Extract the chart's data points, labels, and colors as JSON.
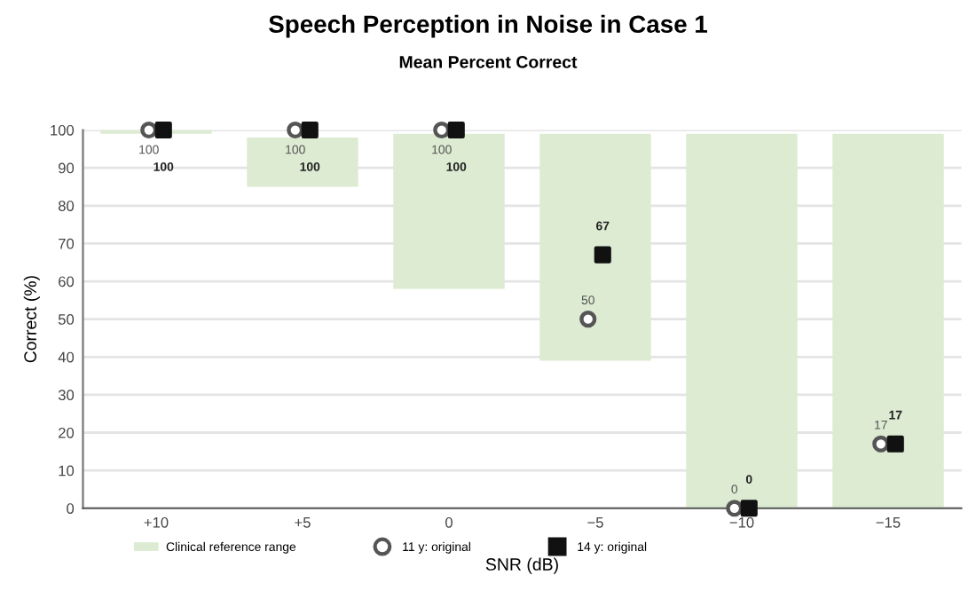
{
  "chart_data": {
    "type": "bar",
    "title": "Speech Perception in Noise in Case 1",
    "subtitle": "Mean Percent Correct",
    "xlabel": "SNR (dB)",
    "ylabel": "Correct (%)",
    "categories": [
      "+10",
      "+5",
      "0",
      "−5",
      "−10",
      "−15"
    ],
    "series": [
      {
        "name": "Clinical reference range",
        "color": "#dcebd2",
        "base": [
          99,
          85,
          58,
          39,
          0,
          0
        ],
        "values": [
          1,
          13,
          41,
          60,
          99,
          99
        ]
      },
      {
        "name": "11 y: original",
        "type": "scatter",
        "marker": "circle",
        "color": "#555555",
        "x": [
          "+10",
          "+5",
          "0",
          "−5",
          "−10",
          "−15"
        ],
        "values": [
          100,
          100,
          100,
          50,
          0,
          17
        ],
        "data_labels": true
      },
      {
        "name": "14 y: original",
        "type": "scatter",
        "marker": "square",
        "color": "#111111",
        "x": [
          "+10",
          "+5",
          "0",
          "−5",
          "−10",
          "−15"
        ],
        "values": [
          100,
          100,
          100,
          67,
          0,
          17
        ],
        "data_labels": true
      }
    ],
    "ylim": [
      0,
      100
    ],
    "yticks": [
      0,
      10,
      20,
      30,
      40,
      50,
      60,
      70,
      80,
      90,
      100
    ],
    "grid": "y",
    "legend": "bottom"
  }
}
